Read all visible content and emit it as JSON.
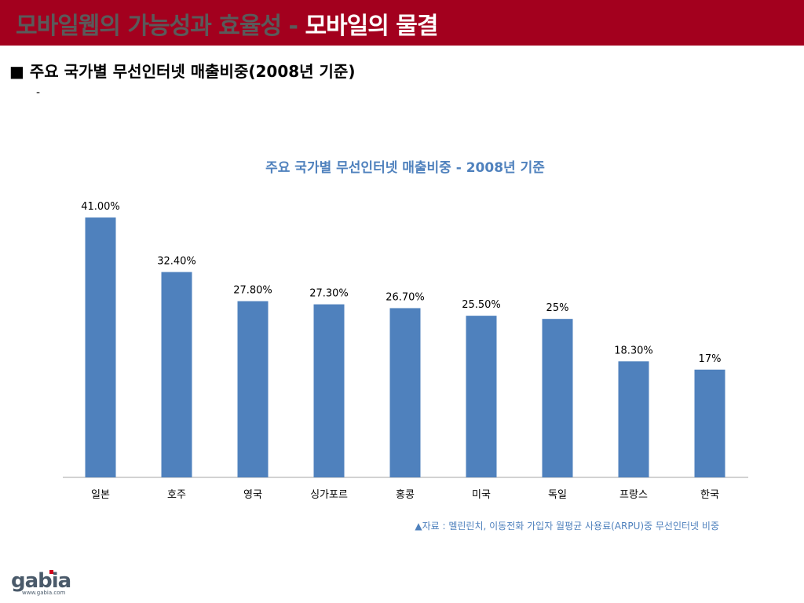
{
  "slide": {
    "title_gray": "모바일웹의 가능성과 효율성 - ",
    "title_white": "모바일의 물결",
    "heading": "■ 주요 국가별 무선인터넷 매출비중(2008년 기준)",
    "sub_bullet": "-",
    "source_note": "▲자료 : 멜린린치, 이동전화 가입자 월평균 사용료(ARPU)중 무선인터넷 비중"
  },
  "logo": {
    "name": "gabia",
    "url_text": "www.gabia.com"
  },
  "colors": {
    "title_bar": "#a3001e",
    "bar": "#4f81bd",
    "chart_title": "#4f81bd"
  },
  "chart_data": {
    "type": "bar",
    "title": "주요 국가별 무선인터넷 매출비중 - 2008년 기준",
    "categories": [
      "일본",
      "호주",
      "영국",
      "싱가포르",
      "홍콩",
      "미국",
      "독일",
      "프랑스",
      "한국"
    ],
    "values": [
      41.0,
      32.4,
      27.8,
      27.3,
      26.7,
      25.5,
      25.0,
      18.3,
      17.0
    ],
    "data_labels": [
      "41.00%",
      "32.40%",
      "27.80%",
      "27.30%",
      "26.70%",
      "25.50%",
      "25%",
      "18.30%",
      "17%"
    ],
    "unit": "%",
    "ylim": [
      0,
      41
    ],
    "grid": false,
    "legend": "none"
  }
}
